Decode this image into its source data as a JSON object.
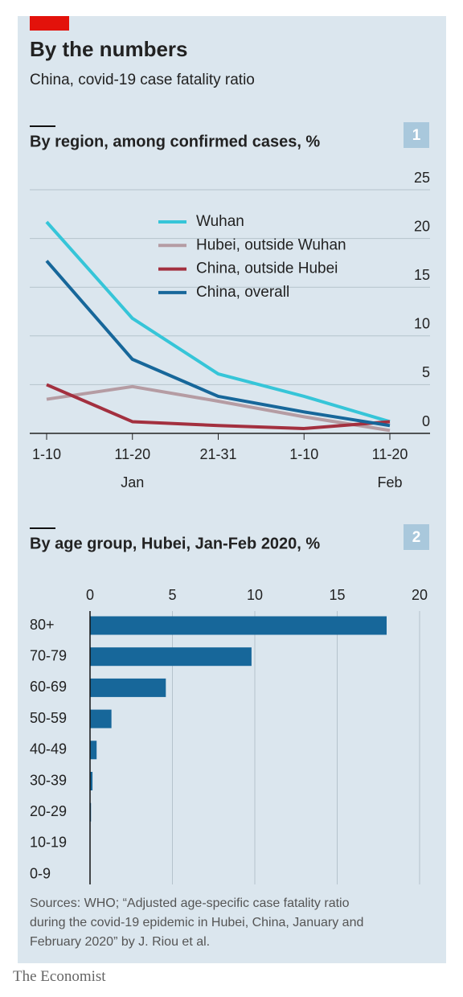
{
  "header": {
    "title": "By the numbers",
    "subtitle": "China, covid-19 case fatality ratio"
  },
  "chart_data": [
    {
      "type": "line",
      "title": "By region, among confirmed cases, %",
      "panel_label": "1",
      "categories": [
        "1-10",
        "11-20",
        "21-31",
        "1-10",
        "11-20"
      ],
      "month_labels": [
        null,
        "Jan",
        null,
        null,
        "Feb"
      ],
      "series": [
        {
          "name": "Wuhan",
          "color": "#36c5d8",
          "values": [
            21.7,
            11.8,
            6.1,
            3.8,
            1.2
          ]
        },
        {
          "name": "Hubei, outside Wuhan",
          "color": "#b59ca3",
          "values": [
            3.5,
            4.8,
            3.3,
            1.7,
            0.3
          ]
        },
        {
          "name": "China, outside Hubei",
          "color": "#a3303f",
          "values": [
            5.0,
            1.2,
            0.8,
            0.5,
            1.2
          ]
        },
        {
          "name": "China, overall",
          "color": "#17679a",
          "values": [
            17.7,
            7.6,
            3.8,
            2.2,
            0.8
          ]
        }
      ],
      "ylim": [
        0,
        25
      ],
      "yticks": [
        0,
        5,
        10,
        15,
        20,
        25
      ],
      "grid": true
    },
    {
      "type": "bar",
      "orientation": "horizontal",
      "title": "By age group, Hubei, Jan-Feb 2020, %",
      "panel_label": "2",
      "categories": [
        "80+",
        "70-79",
        "60-69",
        "50-59",
        "40-49",
        "30-39",
        "20-29",
        "10-19",
        "0-9"
      ],
      "values": [
        18.0,
        9.8,
        4.6,
        1.3,
        0.4,
        0.15,
        0.06,
        0.02,
        0
      ],
      "color": "#17679a",
      "xlim": [
        0,
        20
      ],
      "xticks": [
        0,
        5,
        10,
        15,
        20
      ],
      "grid": true
    }
  ],
  "footer": {
    "source": "Sources: WHO; “Adjusted age-specific case fatality ratio during the covid-19 epidemic in Hubei, China, January and February 2020” by J. Riou et al.",
    "brand": "The Economist"
  }
}
